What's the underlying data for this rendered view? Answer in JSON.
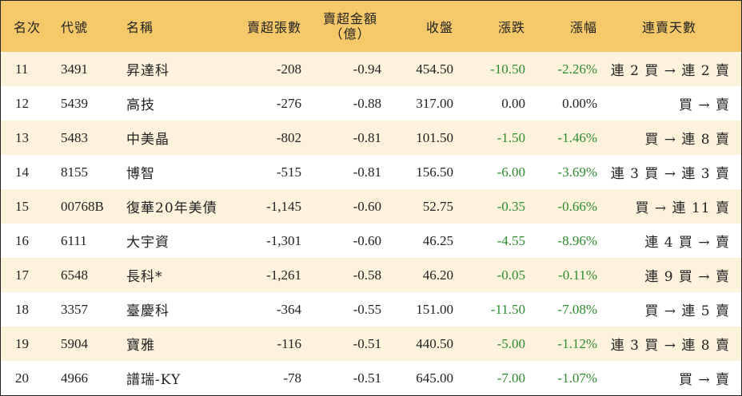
{
  "header": {
    "rank": "名次",
    "code": "代號",
    "name": "名稱",
    "sell_lots": "賣超張數",
    "sell_amount_line1": "賣超金額",
    "sell_amount_line2": "（億）",
    "close": "收盤",
    "change": "漲跌",
    "change_pct": "漲幅",
    "streak": "連賣天數"
  },
  "rows": [
    {
      "rank": "11",
      "code": "3491",
      "name": "昇達科",
      "lots": "-208",
      "amount": "-0.94",
      "close": "454.50",
      "change": "-10.50",
      "pct": "-2.26%",
      "streak": "連 2 買 → 連 2 賣"
    },
    {
      "rank": "12",
      "code": "5439",
      "name": "高技",
      "lots": "-276",
      "amount": "-0.88",
      "close": "317.00",
      "change": "0.00",
      "pct": "0.00%",
      "streak": "買 → 賣"
    },
    {
      "rank": "13",
      "code": "5483",
      "name": "中美晶",
      "lots": "-802",
      "amount": "-0.81",
      "close": "101.50",
      "change": "-1.50",
      "pct": "-1.46%",
      "streak": "買 → 連 8 賣"
    },
    {
      "rank": "14",
      "code": "8155",
      "name": "博智",
      "lots": "-515",
      "amount": "-0.81",
      "close": "156.50",
      "change": "-6.00",
      "pct": "-3.69%",
      "streak": "連 3 買 → 連 3 賣"
    },
    {
      "rank": "15",
      "code": "00768B",
      "name": "復華20年美債",
      "lots": "-1,145",
      "amount": "-0.60",
      "close": "52.75",
      "change": "-0.35",
      "pct": "-0.66%",
      "streak": "買 → 連 11 賣"
    },
    {
      "rank": "16",
      "code": "6111",
      "name": "大宇資",
      "lots": "-1,301",
      "amount": "-0.60",
      "close": "46.25",
      "change": "-4.55",
      "pct": "-8.96%",
      "streak": "連 4 買 → 賣"
    },
    {
      "rank": "17",
      "code": "6548",
      "name": "長科*",
      "lots": "-1,261",
      "amount": "-0.58",
      "close": "46.20",
      "change": "-0.05",
      "pct": "-0.11%",
      "streak": "連 9 買 → 賣"
    },
    {
      "rank": "18",
      "code": "3357",
      "name": "臺慶科",
      "lots": "-364",
      "amount": "-0.55",
      "close": "151.00",
      "change": "-11.50",
      "pct": "-7.08%",
      "streak": "買 → 連 5 賣"
    },
    {
      "rank": "19",
      "code": "5904",
      "name": "寶雅",
      "lots": "-116",
      "amount": "-0.51",
      "close": "440.50",
      "change": "-5.00",
      "pct": "-1.12%",
      "streak": "連 3 買 → 連 8 賣"
    },
    {
      "rank": "20",
      "code": "4966",
      "name": "譜瑞-KY",
      "lots": "-78",
      "amount": "-0.51",
      "close": "645.00",
      "change": "-7.00",
      "pct": "-1.07%",
      "streak": "買 → 賣"
    }
  ],
  "colors": {
    "header_bg": "#f5c969",
    "odd_row_bg": "#fdf3dd",
    "even_row_bg": "#ffffff",
    "negative_change": "#2e8b2e",
    "text": "#222222"
  }
}
